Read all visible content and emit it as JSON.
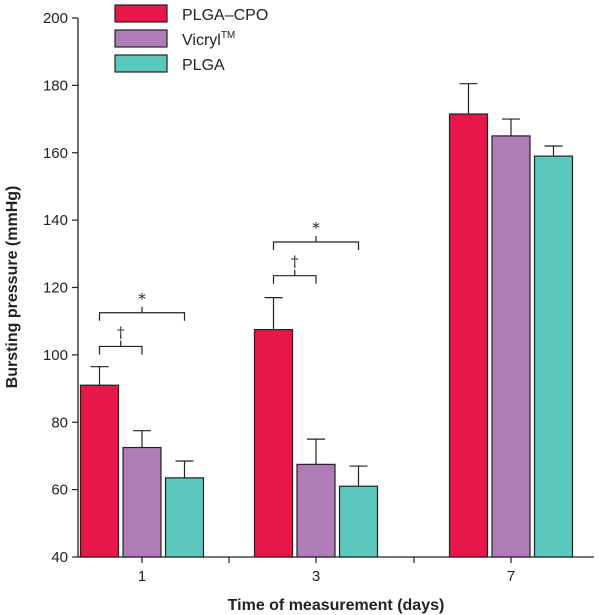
{
  "chart_data": {
    "type": "bar",
    "title": "",
    "xlabel": "Time of measurement (days)",
    "ylabel": "Bursting pressure (mmHg)",
    "ylim": [
      40,
      200
    ],
    "yticks": [
      40,
      60,
      80,
      100,
      120,
      140,
      160,
      180,
      200
    ],
    "categories": [
      "1",
      "3",
      "7"
    ],
    "legend_position": "top-left",
    "series": [
      {
        "name": "PLGA–CPO",
        "legend_main": "PLGA–CPO",
        "legend_sup": "",
        "color": "#e8174a",
        "values": [
          91,
          107.5,
          171.5
        ],
        "errors": [
          5.5,
          9.5,
          9
        ]
      },
      {
        "name": "Vicryl™",
        "legend_main": "Vicryl",
        "legend_sup": "TM",
        "color": "#b07cb8",
        "values": [
          72.5,
          67.5,
          165
        ],
        "errors": [
          5,
          7.5,
          5
        ]
      },
      {
        "name": "PLGA",
        "legend_main": "PLGA",
        "legend_sup": "",
        "color": "#5cc7bd",
        "values": [
          63.5,
          61,
          159
        ],
        "errors": [
          5,
          6,
          3
        ]
      }
    ],
    "significance": [
      {
        "category": 0,
        "from": 0,
        "to": 1,
        "y": 102.5,
        "mark": "†"
      },
      {
        "category": 0,
        "from": 0,
        "to": 2,
        "y": 112.5,
        "mark": "*"
      },
      {
        "category": 1,
        "from": 0,
        "to": 1,
        "y": 123.5,
        "mark": "†"
      },
      {
        "category": 1,
        "from": 0,
        "to": 2,
        "y": 133.5,
        "mark": "*"
      }
    ]
  }
}
